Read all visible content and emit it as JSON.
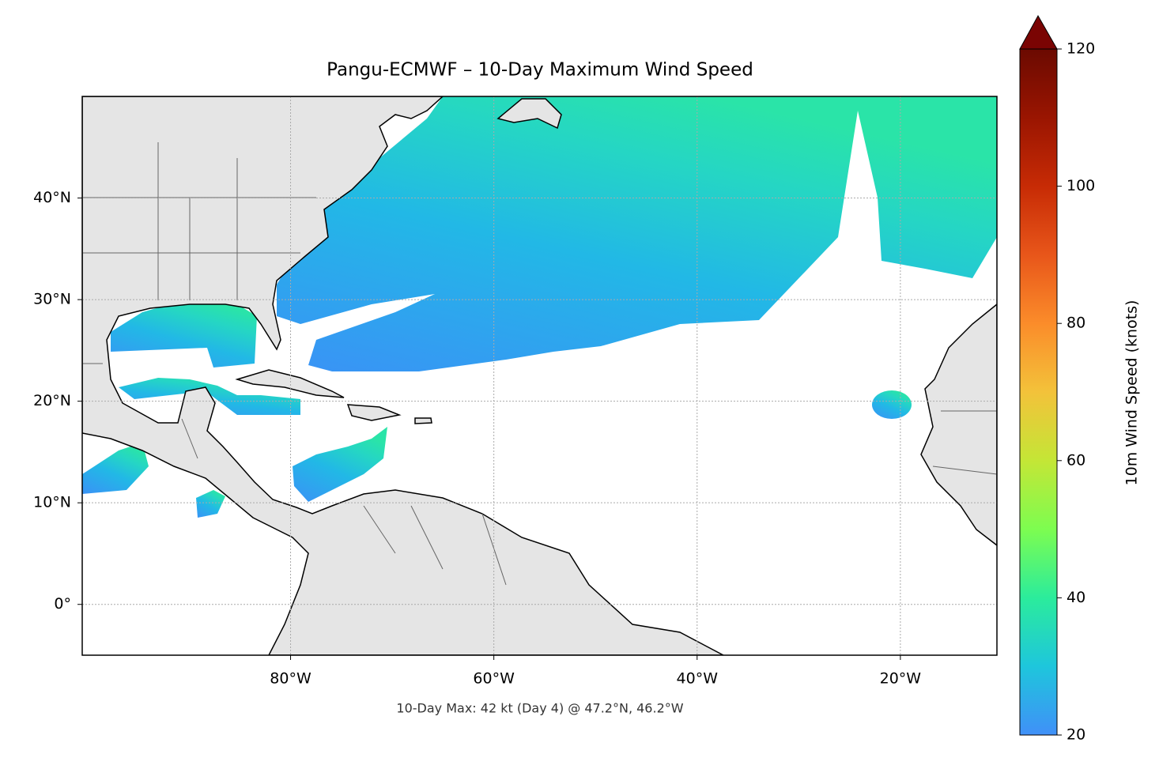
{
  "chart_data": {
    "type": "map",
    "title": "Pangu-ECMWF – 10-Day Maximum Wind Speed",
    "caption": "10-Day Max: 42 kt (Day 4) @ 47.2°N, 46.2°W",
    "xlim": [
      -100.5,
      -10.5
    ],
    "ylim": [
      -5,
      50
    ],
    "xticks": [
      {
        "value": -80,
        "label": "80°W"
      },
      {
        "value": -60,
        "label": "60°W"
      },
      {
        "value": -40,
        "label": "40°W"
      },
      {
        "value": -20,
        "label": "20°W"
      }
    ],
    "yticks": [
      {
        "value": 0,
        "label": "0°"
      },
      {
        "value": 10,
        "label": "10°N"
      },
      {
        "value": 20,
        "label": "20°N"
      },
      {
        "value": 30,
        "label": "30°N"
      },
      {
        "value": 40,
        "label": "40°N"
      }
    ],
    "grid": true,
    "colorbar": {
      "label": "10m Wind Speed (knots)",
      "lim": [
        20,
        120
      ],
      "ticks": [
        20,
        40,
        60,
        80,
        100,
        120
      ],
      "colors": [
        "#4090f8",
        "#1ec6dc",
        "#2bec9c",
        "#7dfd50",
        "#c4e636",
        "#f3c23a",
        "#fb8c2a",
        "#e8561a",
        "#c72b05",
        "#9a1501",
        "#6b0a01"
      ]
    }
  }
}
